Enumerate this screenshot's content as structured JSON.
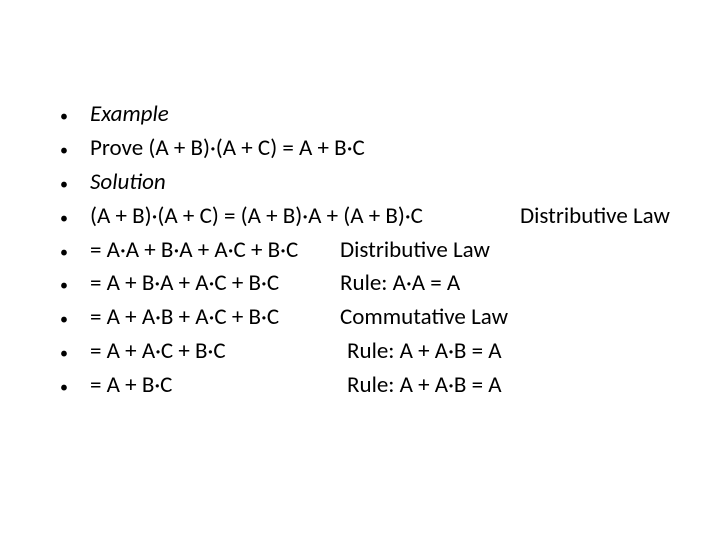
{
  "items": [
    {
      "text": "Example",
      "italic": true,
      "expr": null,
      "reason": null
    },
    {
      "text": "Prove (A + B)·(A + C) = A + B·C",
      "italic": false,
      "expr": null,
      "reason": null
    },
    {
      "text": "Solution",
      "italic": true,
      "expr": null,
      "reason": null
    },
    {
      "text": null,
      "italic": false,
      "expr": "(A + B)·(A + C) = (A + B)·A + (A + B)·C",
      "reason": "Distributive Law",
      "w": "w1"
    },
    {
      "text": null,
      "italic": false,
      "expr": "= A·A + B·A + A·C + B·C",
      "reason": "Distributive Law",
      "w": "w2"
    },
    {
      "text": null,
      "italic": false,
      "expr": "= A + B·A + A·C + B·C",
      "reason": "Rule: A·A = A",
      "w": "w3"
    },
    {
      "text": null,
      "italic": false,
      "expr": "= A + A·B + A·C + B·C",
      "reason": "Commutative Law",
      "w": "w4"
    },
    {
      "text": null,
      "italic": false,
      "expr": "= A + A·C + B·C",
      "reason": "Rule: A + A·B = A",
      "w": "w6"
    },
    {
      "text": null,
      "italic": false,
      "expr": "= A + B·C",
      "reason": "Rule: A + A·B = A",
      "w": "w7"
    }
  ],
  "colors": {
    "text": "#000000",
    "background": "#ffffff"
  },
  "fontsize": 23
}
